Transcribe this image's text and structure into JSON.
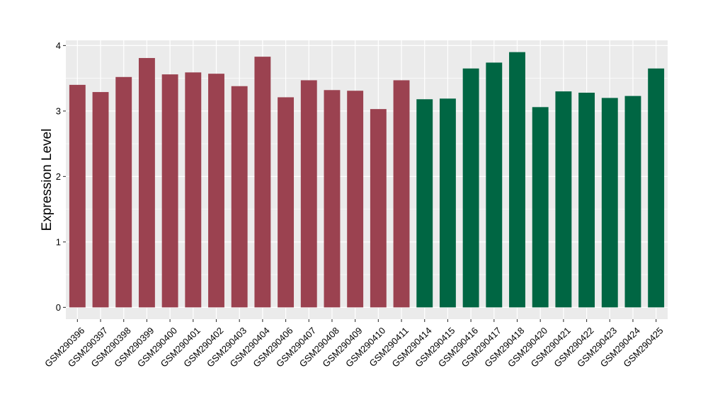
{
  "chart_data": {
    "type": "bar",
    "title": "",
    "xlabel": "",
    "ylabel": "Expression Level",
    "ylim": [
      -0.18,
      4.08
    ],
    "yticks": [
      0,
      1,
      2,
      3,
      4
    ],
    "ytick_labels": [
      "0",
      "1",
      "2",
      "3",
      "4"
    ],
    "grid": true,
    "legend": "none",
    "categories": [
      "GSM290396",
      "GSM290397",
      "GSM290398",
      "GSM290399",
      "GSM290400",
      "GSM290401",
      "GSM290402",
      "GSM290403",
      "GSM290404",
      "GSM290406",
      "GSM290407",
      "GSM290408",
      "GSM290409",
      "GSM290410",
      "GSM290411",
      "GSM290414",
      "GSM290415",
      "GSM290416",
      "GSM290417",
      "GSM290418",
      "GSM290420",
      "GSM290421",
      "GSM290422",
      "GSM290423",
      "GSM290424",
      "GSM290425"
    ],
    "values": [
      3.4,
      3.29,
      3.52,
      3.81,
      3.56,
      3.59,
      3.57,
      3.38,
      3.83,
      3.21,
      3.47,
      3.32,
      3.31,
      3.03,
      3.47,
      3.18,
      3.19,
      3.65,
      3.74,
      3.9,
      3.06,
      3.3,
      3.28,
      3.2,
      3.23,
      3.65
    ],
    "bar_colors": [
      "#9b4250",
      "#9b4250",
      "#9b4250",
      "#9b4250",
      "#9b4250",
      "#9b4250",
      "#9b4250",
      "#9b4250",
      "#9b4250",
      "#9b4250",
      "#9b4250",
      "#9b4250",
      "#9b4250",
      "#9b4250",
      "#9b4250",
      "#006643",
      "#006643",
      "#006643",
      "#006643",
      "#006643",
      "#006643",
      "#006643",
      "#006643",
      "#006643",
      "#006643",
      "#006643"
    ],
    "panel_background": "#ebebeb",
    "gridline_color": "#ffffff"
  }
}
